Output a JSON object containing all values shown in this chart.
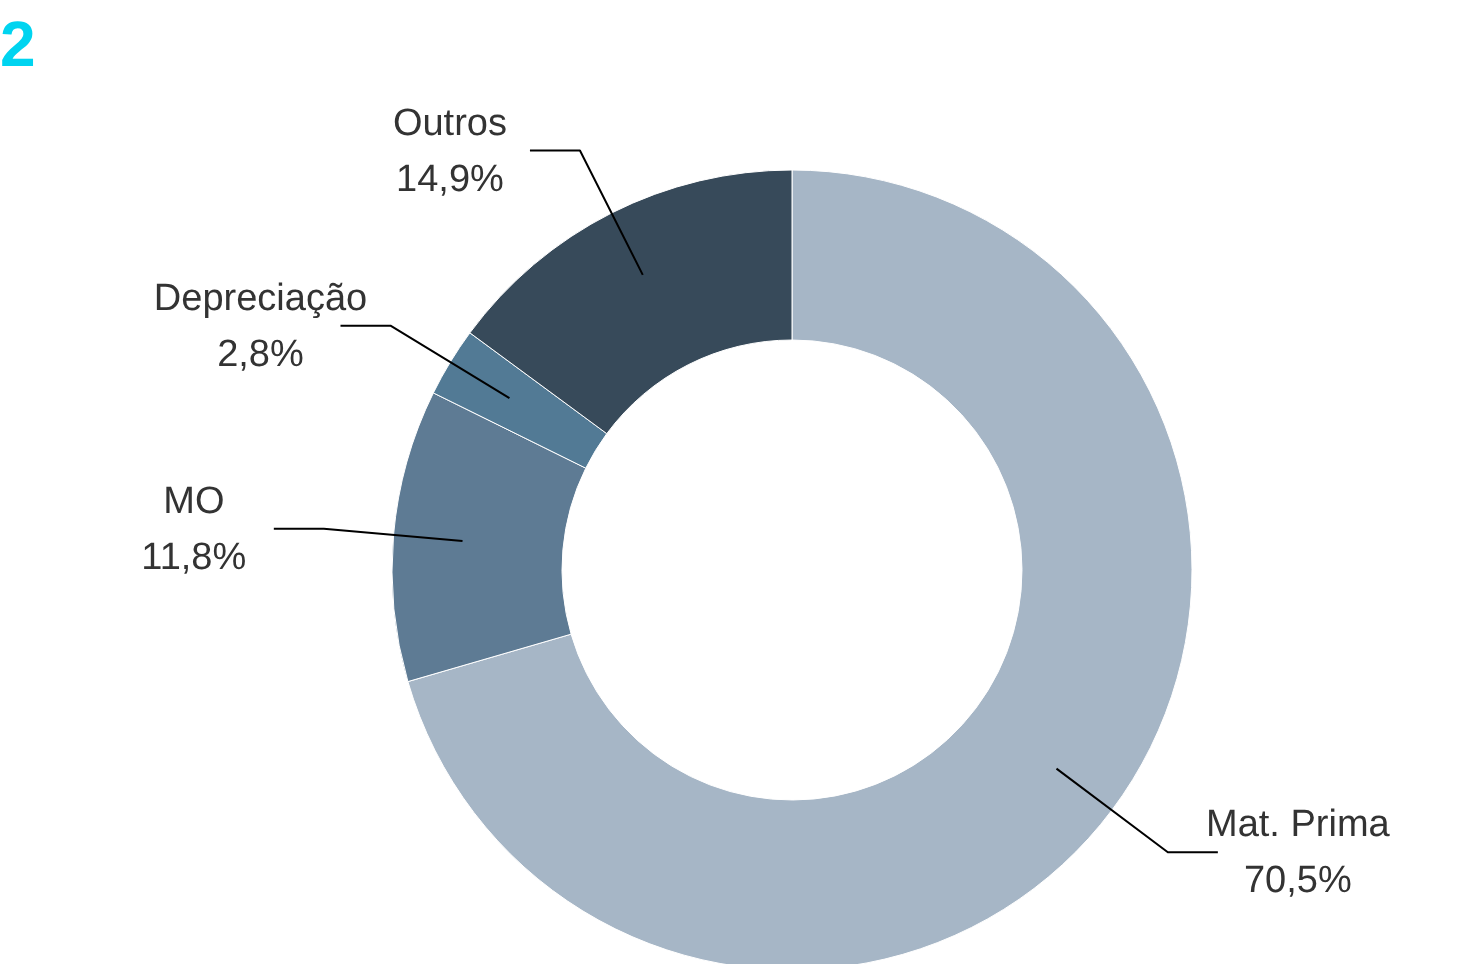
{
  "chart_data": {
    "type": "donut",
    "title": "2",
    "categories": [
      "Mat. Prima",
      "MO",
      "Depreciação",
      "Outros"
    ],
    "values": [
      70.5,
      11.8,
      2.8,
      14.9
    ],
    "value_labels": [
      "70,5%",
      "11,8%",
      "2,8%",
      "14,9%"
    ],
    "colors": [
      "#a6b6c6",
      "#5e7b94",
      "#527a95",
      "#374a5a"
    ]
  }
}
